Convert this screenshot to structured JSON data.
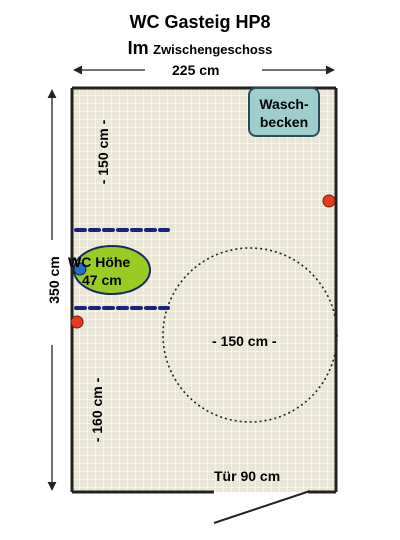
{
  "title": {
    "line1": "WC Gasteig HP8",
    "line2_prefix": "Im",
    "line2_rest": "Zwischengeschoss"
  },
  "dimensions": {
    "width_label": "225 cm",
    "height_label": "350 cm",
    "upper_left_label": "- 150 cm -",
    "lower_left_label": "- 160 cm -",
    "turning_circle_label": "- 150 cm -"
  },
  "fixtures": {
    "sink_line1": "Wasch-",
    "sink_line2": "becken",
    "toilet_line1": "WC Höhe",
    "toilet_line2": "47 cm",
    "door_label": "Tür 90 cm"
  },
  "colors": {
    "floor": "#e9e6d8",
    "tile_line": "#ffffff",
    "wall": "#222222",
    "sink": "#9ecfcf",
    "toilet": "#99cc22",
    "grab_bar": "#1a237e",
    "marker_red": "#e53b1e",
    "marker_blue": "#1f6fd0"
  }
}
